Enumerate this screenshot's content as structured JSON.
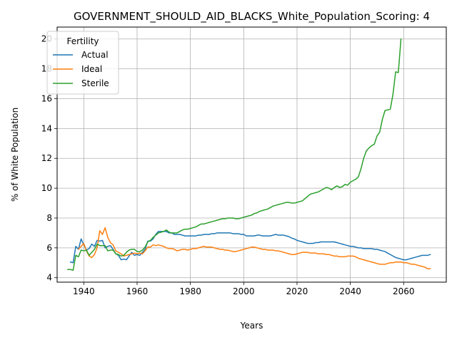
{
  "chart_data": {
    "type": "line",
    "title": "GOVERNMENT_SHOULD_AID_BLACKS_White_Population_Scoring: 4",
    "xlabel": "Years",
    "ylabel": "% of White Population",
    "xlim": [
      1930,
      2076
    ],
    "ylim": [
      3.7,
      20.8
    ],
    "xticks": [
      1940,
      1960,
      1980,
      2000,
      2020,
      2040,
      2060
    ],
    "yticks": [
      4,
      6,
      8,
      10,
      12,
      14,
      16,
      18,
      20
    ],
    "grid": true,
    "legend": {
      "title": "Fertility",
      "placement": "top-left"
    },
    "series": [
      {
        "name": "Actual",
        "color": "#1f77b4",
        "x": [
          1935,
          1936,
          1937,
          1938,
          1939,
          1940,
          1941,
          1942,
          1943,
          1944,
          1945,
          1946,
          1947,
          1948,
          1949,
          1950,
          1951,
          1952,
          1953,
          1954,
          1955,
          1956,
          1957,
          1958,
          1959,
          1960,
          1961,
          1962,
          1963,
          1964,
          1965,
          1966,
          1967,
          1968,
          1969,
          1970,
          1971,
          1972,
          1973,
          1974,
          1975,
          1976,
          1977,
          1978,
          1979,
          1980,
          1981,
          1982,
          1983,
          1984,
          1985,
          1986,
          1987,
          1988,
          1989,
          1990,
          1991,
          1992,
          1993,
          1994,
          1995,
          1996,
          1997,
          1998,
          1999,
          2000,
          2001,
          2002,
          2003,
          2004,
          2005,
          2006,
          2007,
          2008,
          2009,
          2010,
          2011,
          2012,
          2013,
          2014,
          2015,
          2016,
          2017,
          2018,
          2019,
          2020,
          2021,
          2022,
          2023,
          2024,
          2025,
          2026,
          2027,
          2028,
          2029,
          2030,
          2031,
          2032,
          2033,
          2034,
          2035,
          2036,
          2037,
          2038,
          2039,
          2040,
          2041,
          2042,
          2043,
          2044,
          2045,
          2046,
          2047,
          2048,
          2049,
          2050,
          2051,
          2052,
          2053,
          2054,
          2055,
          2056,
          2057,
          2058,
          2059,
          2060,
          2061,
          2062,
          2063,
          2064,
          2065,
          2066,
          2067,
          2068,
          2069,
          2070
        ],
        "y": [
          5.05,
          5.0,
          6.1,
          5.9,
          6.6,
          6.2,
          5.85,
          5.95,
          6.25,
          6.1,
          6.5,
          6.45,
          6.5,
          6.0,
          6.1,
          6.15,
          5.9,
          5.6,
          5.5,
          5.2,
          5.25,
          5.2,
          5.45,
          5.7,
          5.5,
          5.55,
          5.5,
          5.7,
          5.9,
          6.45,
          6.45,
          6.6,
          6.9,
          7.1,
          7.1,
          7.1,
          7.1,
          7.0,
          7.0,
          6.9,
          6.9,
          6.9,
          6.85,
          6.8,
          6.8,
          6.8,
          6.8,
          6.8,
          6.85,
          6.85,
          6.9,
          6.9,
          6.9,
          6.95,
          6.95,
          7.0,
          7.0,
          7.0,
          7.0,
          7.0,
          7.0,
          6.95,
          6.95,
          6.95,
          6.9,
          6.9,
          6.8,
          6.8,
          6.8,
          6.8,
          6.85,
          6.85,
          6.8,
          6.8,
          6.8,
          6.8,
          6.85,
          6.9,
          6.85,
          6.85,
          6.85,
          6.8,
          6.75,
          6.65,
          6.6,
          6.5,
          6.45,
          6.4,
          6.35,
          6.3,
          6.3,
          6.3,
          6.35,
          6.35,
          6.4,
          6.4,
          6.4,
          6.4,
          6.4,
          6.4,
          6.35,
          6.3,
          6.25,
          6.2,
          6.15,
          6.1,
          6.1,
          6.05,
          6.0,
          6.0,
          5.95,
          5.95,
          5.95,
          5.95,
          5.9,
          5.9,
          5.85,
          5.8,
          5.75,
          5.65,
          5.55,
          5.45,
          5.35,
          5.3,
          5.25,
          5.2,
          5.2,
          5.25,
          5.3,
          5.35,
          5.4,
          5.45,
          5.5,
          5.5,
          5.5,
          5.55
        ],
        "y_note": ""
      },
      {
        "name": "Ideal",
        "color": "#ff7f0e",
        "x": [
          1938,
          1939,
          1940,
          1941,
          1942,
          1943,
          1944,
          1945,
          1946,
          1947,
          1948,
          1949,
          1950,
          1951,
          1952,
          1953,
          1954,
          1955,
          1956,
          1957,
          1958,
          1959,
          1960,
          1961,
          1962,
          1963,
          1964,
          1965,
          1966,
          1967,
          1968,
          1969,
          1970,
          1971,
          1972,
          1973,
          1974,
          1975,
          1976,
          1977,
          1978,
          1979,
          1980,
          1981,
          1982,
          1983,
          1984,
          1985,
          1986,
          1987,
          1988,
          1989,
          1990,
          1991,
          1992,
          1993,
          1994,
          1995,
          1996,
          1997,
          1998,
          1999,
          2000,
          2001,
          2002,
          2003,
          2004,
          2005,
          2006,
          2007,
          2008,
          2009,
          2010,
          2011,
          2012,
          2013,
          2014,
          2015,
          2016,
          2017,
          2018,
          2019,
          2020,
          2021,
          2022,
          2023,
          2024,
          2025,
          2026,
          2027,
          2028,
          2029,
          2030,
          2031,
          2032,
          2033,
          2034,
          2035,
          2036,
          2037,
          2038,
          2039,
          2040,
          2041,
          2042,
          2043,
          2044,
          2045,
          2046,
          2047,
          2048,
          2049,
          2050,
          2051,
          2052,
          2053,
          2054,
          2055,
          2056,
          2057,
          2058,
          2059,
          2060,
          2061,
          2062,
          2063,
          2064,
          2065,
          2066,
          2067,
          2068,
          2069,
          2070
        ],
        "y": [
          5.9,
          6.1,
          6.3,
          5.8,
          5.45,
          5.35,
          5.55,
          6.0,
          7.15,
          6.9,
          7.35,
          6.7,
          6.35,
          6.2,
          5.8,
          5.7,
          5.6,
          5.45,
          5.5,
          5.55,
          5.6,
          5.65,
          5.6,
          5.65,
          5.6,
          5.8,
          6.05,
          6.05,
          6.2,
          6.15,
          6.2,
          6.15,
          6.1,
          6.0,
          5.95,
          5.95,
          5.9,
          5.8,
          5.85,
          5.9,
          5.9,
          5.85,
          5.9,
          5.95,
          5.95,
          6.0,
          6.05,
          6.1,
          6.05,
          6.05,
          6.05,
          6.0,
          5.95,
          5.9,
          5.9,
          5.85,
          5.85,
          5.8,
          5.75,
          5.75,
          5.8,
          5.85,
          5.9,
          5.95,
          6.0,
          6.05,
          6.05,
          6.0,
          5.95,
          5.9,
          5.9,
          5.85,
          5.85,
          5.85,
          5.8,
          5.8,
          5.75,
          5.7,
          5.65,
          5.6,
          5.55,
          5.55,
          5.6,
          5.65,
          5.7,
          5.7,
          5.7,
          5.65,
          5.65,
          5.65,
          5.6,
          5.6,
          5.6,
          5.55,
          5.55,
          5.5,
          5.45,
          5.45,
          5.4,
          5.4,
          5.4,
          5.45,
          5.45,
          5.45,
          5.4,
          5.3,
          5.25,
          5.2,
          5.15,
          5.1,
          5.05,
          5.0,
          4.95,
          4.9,
          4.9,
          4.9,
          4.95,
          5.0,
          5.0,
          5.05,
          5.05,
          5.05,
          5.0,
          5.0,
          4.95,
          4.9,
          4.9,
          4.85,
          4.8,
          4.75,
          4.7,
          4.6,
          4.6
        ]
      },
      {
        "name": "Sterile",
        "color": "#2ca02c",
        "x": [
          1934,
          1935,
          1936,
          1937,
          1938,
          1939,
          1940,
          1941,
          1942,
          1943,
          1944,
          1945,
          1946,
          1947,
          1948,
          1949,
          1950,
          1951,
          1952,
          1953,
          1954,
          1955,
          1956,
          1957,
          1958,
          1959,
          1960,
          1961,
          1962,
          1963,
          1964,
          1965,
          1966,
          1967,
          1968,
          1969,
          1970,
          1971,
          1972,
          1973,
          1974,
          1975,
          1976,
          1977,
          1978,
          1979,
          1980,
          1981,
          1982,
          1983,
          1984,
          1985,
          1986,
          1987,
          1988,
          1989,
          1990,
          1991,
          1992,
          1993,
          1994,
          1995,
          1996,
          1997,
          1998,
          1999,
          2000,
          2001,
          2002,
          2003,
          2004,
          2005,
          2006,
          2007,
          2008,
          2009,
          2010,
          2011,
          2012,
          2013,
          2014,
          2015,
          2016,
          2017,
          2018,
          2019,
          2020,
          2021,
          2022,
          2023,
          2024,
          2025,
          2026,
          2027,
          2028,
          2029,
          2030,
          2031,
          2032,
          2033,
          2034,
          2035,
          2036,
          2037,
          2038,
          2039,
          2040,
          2041,
          2042,
          2043,
          2044,
          2045,
          2046,
          2047,
          2048,
          2049,
          2050,
          2051,
          2052,
          2053,
          2054,
          2055,
          2056,
          2057,
          2058,
          2059
        ],
        "y": [
          4.55,
          4.55,
          4.5,
          5.5,
          5.4,
          5.85,
          5.8,
          5.85,
          5.5,
          5.7,
          5.9,
          6.25,
          6.15,
          6.15,
          6.15,
          5.8,
          5.85,
          5.85,
          5.6,
          5.55,
          5.45,
          5.5,
          5.7,
          5.85,
          5.9,
          5.9,
          5.75,
          5.75,
          5.85,
          6.05,
          6.4,
          6.5,
          6.7,
          6.85,
          7.0,
          7.05,
          7.1,
          7.2,
          7.05,
          7.0,
          7.0,
          7.0,
          7.1,
          7.2,
          7.25,
          7.25,
          7.3,
          7.35,
          7.4,
          7.5,
          7.6,
          7.6,
          7.65,
          7.7,
          7.75,
          7.8,
          7.85,
          7.9,
          7.95,
          7.95,
          8.0,
          8.0,
          8.0,
          7.95,
          7.95,
          8.0,
          8.05,
          8.1,
          8.15,
          8.2,
          8.3,
          8.35,
          8.45,
          8.5,
          8.55,
          8.6,
          8.7,
          8.8,
          8.85,
          8.9,
          8.95,
          9.0,
          9.05,
          9.05,
          9.0,
          9.0,
          9.05,
          9.1,
          9.15,
          9.3,
          9.45,
          9.6,
          9.65,
          9.7,
          9.75,
          9.85,
          9.95,
          10.05,
          10.0,
          9.9,
          10.05,
          10.15,
          10.05,
          10.1,
          10.25,
          10.2,
          10.4,
          10.5,
          10.6,
          10.75,
          11.3,
          12.0,
          12.5,
          12.7,
          12.85,
          12.95,
          13.5,
          13.75,
          14.6,
          15.2,
          15.25,
          15.3,
          16.3,
          17.8,
          17.75,
          20.0
        ]
      }
    ]
  }
}
